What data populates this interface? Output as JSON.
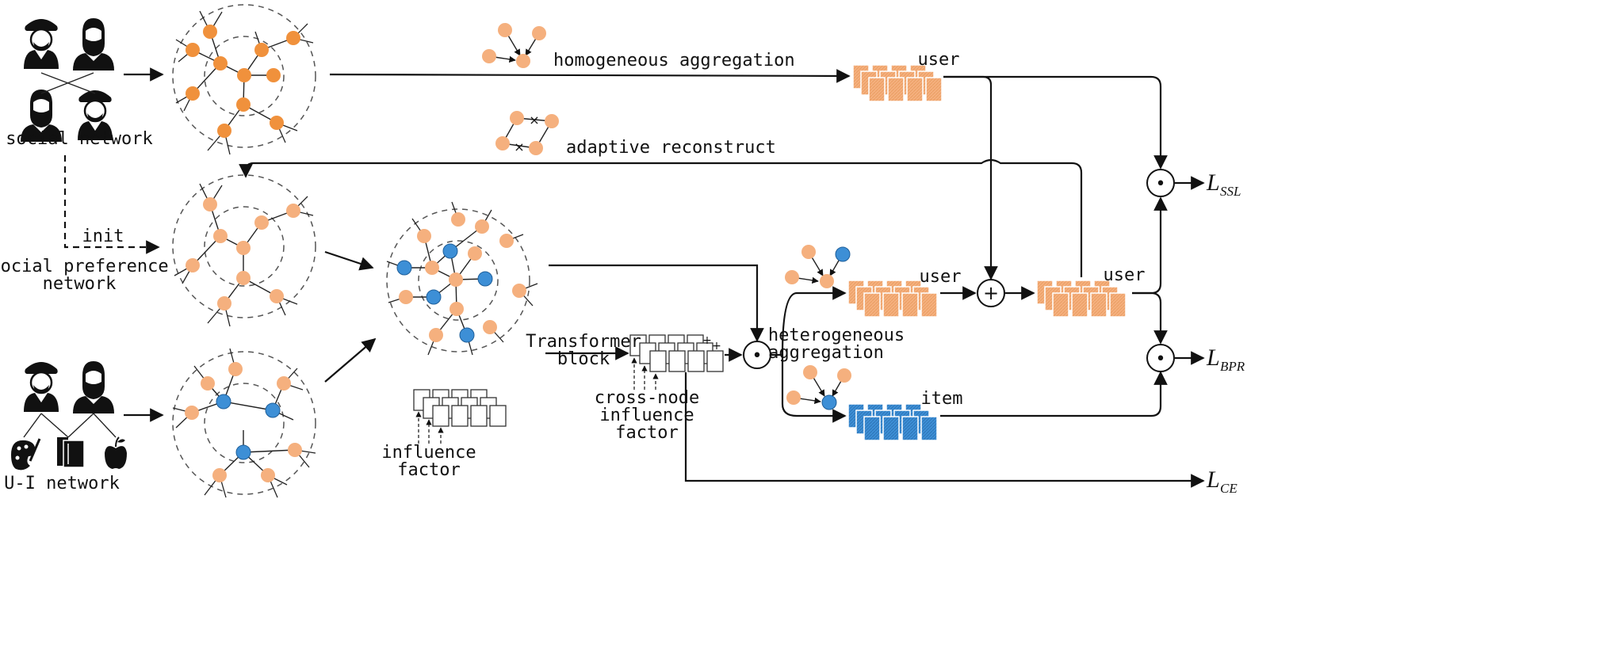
{
  "colors": {
    "node_dark": "#F0913C",
    "node_light": "#F5B07E",
    "node_blue": "#3D8FD6",
    "line": "#111111"
  },
  "labels": {
    "social_network": "social network",
    "social_preference_line1": "social preference",
    "social_preference_line2": "network",
    "ui_network": "U-I network",
    "init": "init",
    "homogeneous_aggregation": "homogeneous aggregation",
    "adaptive_reconstruct": "adaptive reconstruct",
    "user_top": "user",
    "user_mid": "user",
    "user_right": "user",
    "item": "item",
    "heterogeneous_line1": "heterogeneous",
    "heterogeneous_line2": "aggregation",
    "transformer_line1": "Transformer",
    "transformer_line2": "block",
    "cross_node_line1": "cross-node",
    "cross_node_line2": "influence",
    "cross_node_line3": "factor",
    "influence_line1": "influence",
    "influence_line2": "factor"
  },
  "operators": {
    "dot": "•",
    "plus": "+"
  },
  "losses": {
    "ssl": {
      "main": "L",
      "sub": "SSL"
    },
    "bpr": {
      "main": "L",
      "sub": "BPR"
    },
    "ce": {
      "main": "L",
      "sub": "CE"
    }
  },
  "icons": [
    "man-with-beret-icon",
    "bearded-man-icon",
    "palette-icon",
    "books-icon",
    "apple-icon"
  ]
}
